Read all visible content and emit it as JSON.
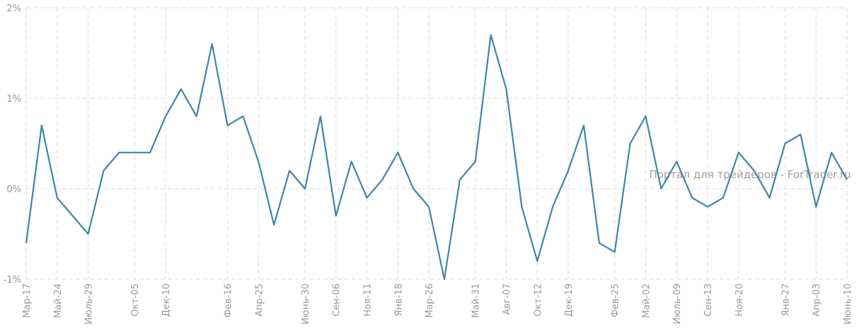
{
  "chart_data": {
    "type": "line",
    "watermark": "Портал для трейдеров - ForTrader.ru",
    "categories": [
      "Мар-17",
      null,
      "Май-24",
      null,
      "Июль-29",
      null,
      null,
      "Окт-05",
      null,
      "Дек-10",
      null,
      null,
      null,
      "Фев-16",
      null,
      "Апр-25",
      null,
      null,
      "Июнь-30",
      null,
      "Сен-06",
      null,
      "Ноя-11",
      null,
      "Янв-18",
      null,
      "Мар-26",
      null,
      null,
      "Май-31",
      null,
      "Авг-07",
      null,
      "Окт-12",
      null,
      "Дек-19",
      null,
      null,
      "Фев-25",
      null,
      "Май-02",
      null,
      "Июль-09",
      null,
      "Сен-13",
      null,
      "Ноя-20",
      null,
      null,
      "Янв-27",
      null,
      "Апр-03",
      null,
      "Июнь-10"
    ],
    "series": [
      {
        "name": null,
        "color": "#3e86a6",
        "values": [
          -0.6,
          0.7,
          -0.1,
          -0.3,
          -0.5,
          0.2,
          0.4,
          0.4,
          0.4,
          0.8,
          1.1,
          0.8,
          1.6,
          0.7,
          0.8,
          0.3,
          -0.4,
          0.2,
          0,
          0.8,
          -0.3,
          0.3,
          -0.1,
          0.1,
          0.4,
          0,
          -0.2,
          -1.0,
          0.1,
          0.3,
          1.7,
          1.1,
          -0.2,
          -0.8,
          -0.2,
          0.2,
          0.7,
          -0.6,
          -0.7,
          0.5,
          0.8,
          0,
          0.3,
          -0.1,
          -0.2,
          -0.1,
          0.4,
          0.2,
          -0.1,
          0.5,
          0.6,
          -0.2,
          0.4,
          0.1
        ]
      }
    ],
    "ylim": [
      -1,
      2
    ],
    "yticks": [
      {
        "value": -1,
        "label": "-1%"
      },
      {
        "value": 0,
        "label": "0%"
      },
      {
        "value": 1,
        "label": "1%"
      },
      {
        "value": 2,
        "label": "2%"
      }
    ],
    "grid": true
  }
}
